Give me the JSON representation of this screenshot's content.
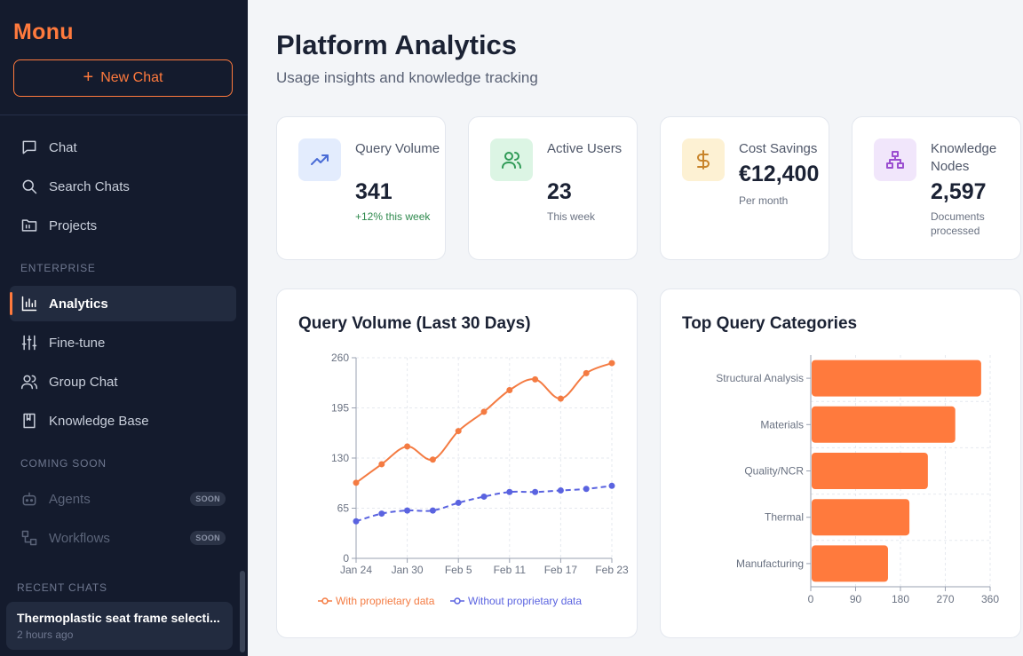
{
  "sidebar": {
    "brand": "Monu",
    "new_chat_label": "New Chat",
    "nav": [
      {
        "label": "Chat",
        "icon": "chat-icon"
      },
      {
        "label": "Search Chats",
        "icon": "search-icon"
      },
      {
        "label": "Projects",
        "icon": "folder-icon"
      }
    ],
    "enterprise_label": "ENTERPRISE",
    "enterprise": [
      {
        "label": "Analytics",
        "icon": "bar-chart-icon",
        "active": true
      },
      {
        "label": "Fine-tune",
        "icon": "sliders-icon"
      },
      {
        "label": "Group Chat",
        "icon": "users-icon"
      },
      {
        "label": "Knowledge Base",
        "icon": "book-icon"
      }
    ],
    "coming_soon_label": "COMING SOON",
    "coming_soon": [
      {
        "label": "Agents",
        "icon": "robot-icon",
        "badge": "SOON"
      },
      {
        "label": "Workflows",
        "icon": "workflow-icon",
        "badge": "SOON"
      }
    ],
    "recent_label": "RECENT CHATS",
    "recent": [
      {
        "title": "Thermoplastic seat frame selecti...",
        "time": "2 hours ago"
      }
    ]
  },
  "header": {
    "title": "Platform Analytics",
    "subtitle": "Usage insights and knowledge tracking"
  },
  "stats": [
    {
      "label": "Query Volume",
      "value": "341",
      "note": "+12% this week",
      "icon": "trending-up-icon",
      "icon_bg": "#e3ecfd",
      "icon_color": "#4a6cd6"
    },
    {
      "label": "Active Users",
      "value": "23",
      "note": "This week",
      "icon": "users-icon",
      "icon_bg": "#dcf5e4",
      "icon_color": "#2f9a56"
    },
    {
      "label": "Cost Savings",
      "value": "€12,400",
      "note": "Per month",
      "icon": "dollar-icon",
      "icon_bg": "#fdf1d3",
      "icon_color": "#c8842a"
    },
    {
      "label": "Knowledge Nodes",
      "value": "2,597",
      "note": "Documents processed",
      "icon": "hierarchy-icon",
      "icon_bg": "#f1e6fb",
      "icon_color": "#9b4fd0"
    }
  ],
  "chart_data": [
    {
      "type": "line",
      "title": "Query Volume (Last 30 Days)",
      "x_ticks": [
        "Jan 24",
        "Jan 30",
        "Feb 5",
        "Feb 11",
        "Feb 17",
        "Feb 23"
      ],
      "ylim": [
        0,
        260
      ],
      "y_ticks": [
        0,
        65,
        130,
        195,
        260
      ],
      "series": [
        {
          "name": "With proprietary data",
          "color": "#f47b42",
          "values": [
            98,
            122,
            145,
            128,
            165,
            190,
            218,
            232,
            207,
            240,
            253
          ]
        },
        {
          "name": "Without proprietary data",
          "color": "#5a63e0",
          "values": [
            48,
            58,
            62,
            62,
            72,
            80,
            86,
            86,
            88,
            90,
            94
          ]
        }
      ],
      "legend": "bottom"
    },
    {
      "type": "bar",
      "orientation": "horizontal",
      "title": "Top Query Categories",
      "categories": [
        "Structural Analysis",
        "Materials",
        "Quality/NCR",
        "Thermal",
        "Manufacturing"
      ],
      "values": [
        342,
        290,
        235,
        198,
        155
      ],
      "color": "#ff7a3d",
      "xlim": [
        0,
        360
      ],
      "x_ticks": [
        0,
        90,
        180,
        270,
        360
      ]
    }
  ]
}
